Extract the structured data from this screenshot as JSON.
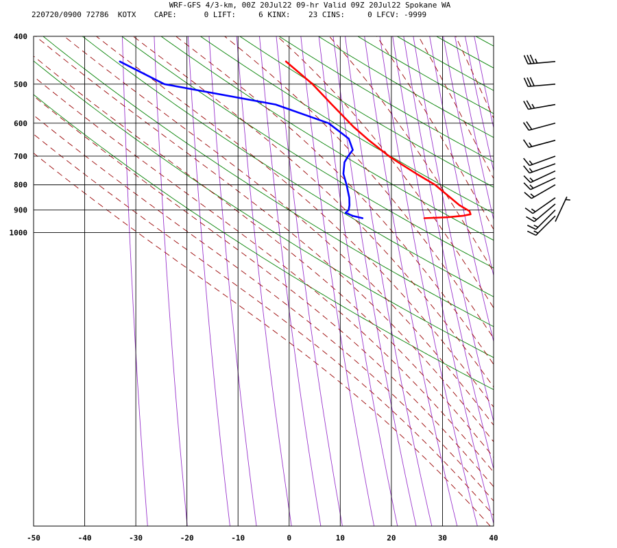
{
  "header": {
    "title": "WRF-GFS 4/3-km, 00Z 20Jul22 09-hr Valid 09Z 20Jul22 Spokane WA",
    "station_line": "220720/0900 72786  KOTX    CAPE:      0 LIFT:     6 KINX:    23 CINS:     0 LFCV: -9999"
  },
  "chart_data": {
    "type": "line",
    "subtype": "skew-t log-p sounding",
    "title": "WRF-GFS 4/3-km, 00Z 20Jul22 09-hr Valid 09Z 20Jul22 Spokane WA",
    "xlabel": "",
    "ylabel": "",
    "x_ticks": [
      -50,
      -40,
      -30,
      -20,
      -10,
      0,
      10,
      20,
      30,
      40
    ],
    "y_ticks": [
      400,
      500,
      600,
      700,
      800,
      900,
      1000
    ],
    "xlim": [
      -50,
      40
    ],
    "ylim": [
      1040,
      400
    ],
    "y_scale": "log",
    "grid": true,
    "colors": {
      "temperature": "#ff0000",
      "dewpoint": "#0000ff",
      "dry_adiabat": "#008000",
      "moist_adiabat": "#990000",
      "mixing_ratio": "#9933cc",
      "wind_barb": "#000000"
    },
    "series": [
      {
        "values": [
          {
            "p": 935,
            "t": 15.6
          },
          {
            "p": 931,
            "t": 20.0
          },
          {
            "p": 925,
            "t": 23.0
          },
          {
            "p": 918,
            "t": 24.5
          },
          {
            "p": 905,
            "t": 24.2
          },
          {
            "p": 880,
            "t": 22.0
          },
          {
            "p": 850,
            "t": 20.0
          },
          {
            "p": 800,
            "t": 16.5
          },
          {
            "p": 760,
            "t": 12.5
          },
          {
            "p": 720,
            "t": 8.5
          },
          {
            "p": 700,
            "t": 6.5
          },
          {
            "p": 650,
            "t": 2.0
          },
          {
            "p": 610,
            "t": -1.5
          },
          {
            "p": 550,
            "t": -6.5
          },
          {
            "p": 500,
            "t": -11.0
          },
          {
            "p": 450,
            "t": -17.0
          }
        ]
      },
      {
        "values": [
          {
            "p": 935,
            "t": 3.5
          },
          {
            "p": 925,
            "t": 1.5
          },
          {
            "p": 912,
            "t": 0.0
          },
          {
            "p": 900,
            "t": 0.5
          },
          {
            "p": 880,
            "t": 0.5
          },
          {
            "p": 850,
            "t": 0.2
          },
          {
            "p": 800,
            "t": -0.8
          },
          {
            "p": 760,
            "t": -1.8
          },
          {
            "p": 720,
            "t": -2.0
          },
          {
            "p": 700,
            "t": -1.5
          },
          {
            "p": 680,
            "t": -0.8
          },
          {
            "p": 645,
            "t": -2.0
          },
          {
            "p": 600,
            "t": -6.5
          },
          {
            "p": 550,
            "t": -17.5
          },
          {
            "p": 500,
            "t": -40.0
          },
          {
            "p": 450,
            "t": -49.5
          }
        ]
      }
    ],
    "wind_barbs": [
      {
        "p": 450,
        "dir": 265,
        "kt": 35
      },
      {
        "p": 500,
        "dir": 265,
        "kt": 30
      },
      {
        "p": 550,
        "dir": 260,
        "kt": 25
      },
      {
        "p": 600,
        "dir": 255,
        "kt": 20
      },
      {
        "p": 650,
        "dir": 255,
        "kt": 15
      },
      {
        "p": 700,
        "dir": 250,
        "kt": 15
      },
      {
        "p": 725,
        "dir": 250,
        "kt": 15
      },
      {
        "p": 750,
        "dir": 245,
        "kt": 15
      },
      {
        "p": 775,
        "dir": 245,
        "kt": 15
      },
      {
        "p": 800,
        "dir": 240,
        "kt": 15
      },
      {
        "p": 850,
        "dir": 235,
        "kt": 15
      },
      {
        "p": 875,
        "dir": 230,
        "kt": 15
      },
      {
        "p": 900,
        "dir": 225,
        "kt": 15
      },
      {
        "p": 925,
        "dir": 225,
        "kt": 15
      },
      {
        "p": 950,
        "dir": 25,
        "kt": 5
      }
    ]
  }
}
